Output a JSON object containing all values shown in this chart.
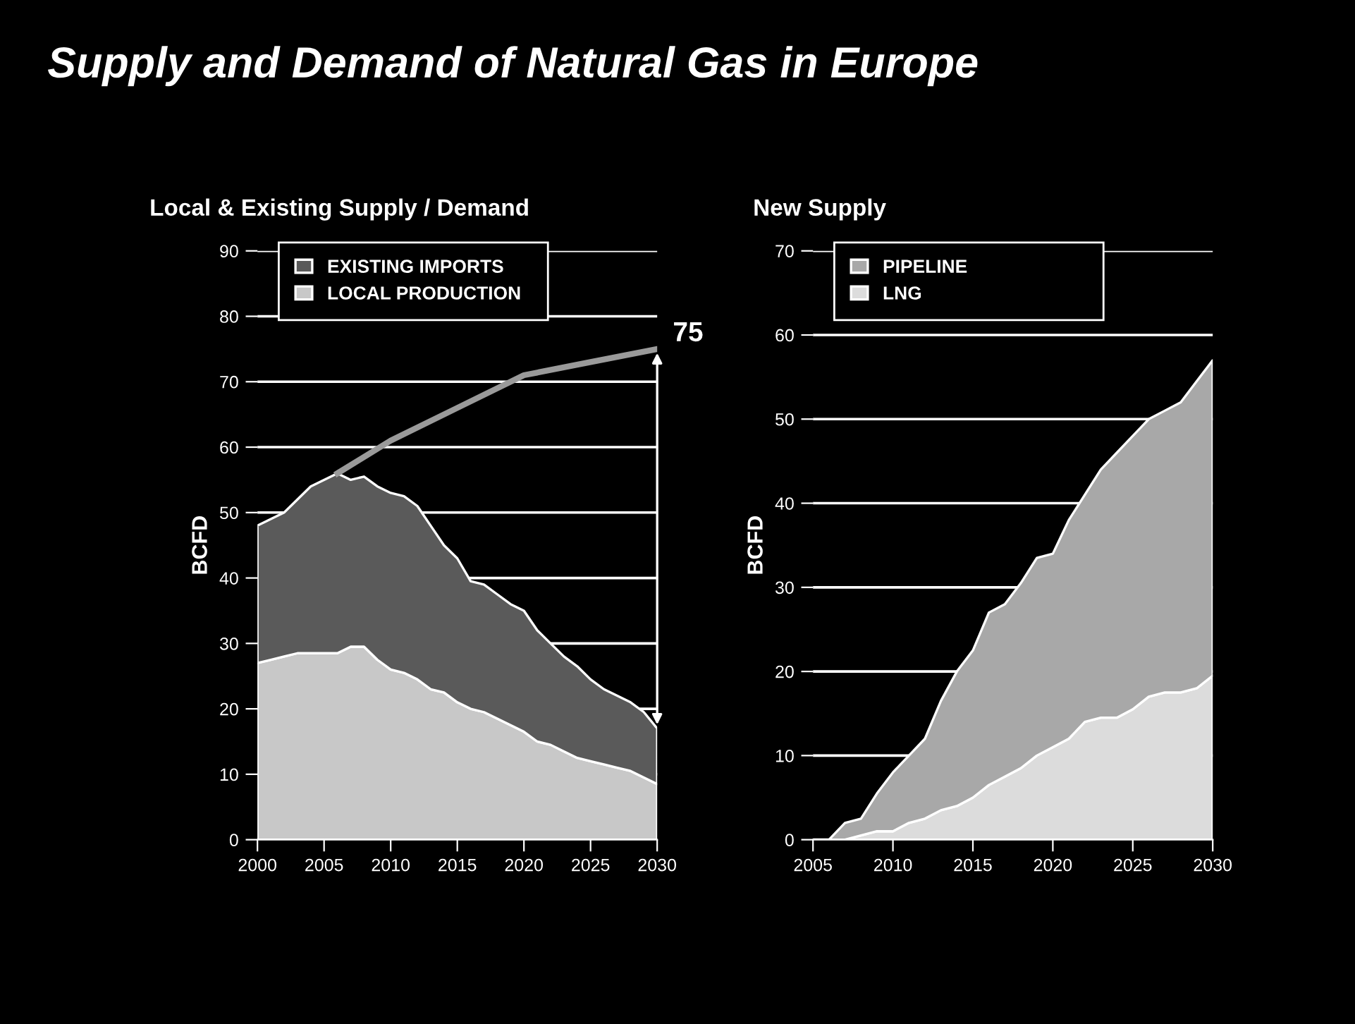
{
  "chart_data": [
    {
      "type": "area",
      "stacked": true,
      "title": "Supply and Demand of Natural Gas in Europe",
      "subtitle": "Local & Existing Supply / Demand",
      "ylabel": "BCFD",
      "x": [
        2000,
        2001,
        2002,
        2003,
        2004,
        2005,
        2006,
        2007,
        2008,
        2009,
        2010,
        2011,
        2012,
        2013,
        2014,
        2015,
        2016,
        2017,
        2018,
        2019,
        2020,
        2021,
        2022,
        2023,
        2024,
        2025,
        2026,
        2027,
        2028,
        2029,
        2030
      ],
      "series": [
        {
          "name": "LOCAL PRODUCTION",
          "color": "#c8c8c8",
          "values": [
            27,
            27.5,
            28,
            28.5,
            28.5,
            28.5,
            28.5,
            29.5,
            29.5,
            27.5,
            26,
            25.5,
            24.5,
            23,
            22.5,
            21,
            20,
            19.5,
            18.5,
            17.5,
            16.5,
            15,
            14.5,
            13.5,
            12.5,
            12,
            11.5,
            11,
            10.5,
            9.5,
            8.5
          ]
        },
        {
          "name": "EXISTING IMPORTS",
          "color": "#5a5a5a",
          "values": [
            21,
            21.5,
            22,
            23.5,
            25.5,
            26.5,
            27.5,
            25.5,
            26,
            26.5,
            27,
            27,
            26.5,
            25,
            22.5,
            22,
            19.5,
            19.5,
            19,
            18.5,
            18.5,
            17,
            15.5,
            14.5,
            14,
            12.5,
            11.5,
            11,
            10.5,
            10,
            8.5
          ]
        },
        {
          "type": "line",
          "color": "#9a9a9a",
          "x": [
            2006,
            2010,
            2015,
            2020,
            2025,
            2030
          ],
          "values": [
            56,
            61,
            66,
            71,
            73,
            75
          ]
        }
      ],
      "annotations": [
        {
          "text": "75",
          "x": 2030,
          "y": 75
        }
      ],
      "xlim": [
        2000,
        2030
      ],
      "xticks": [
        2000,
        2005,
        2010,
        2015,
        2020,
        2025,
        2030
      ],
      "ylim": [
        0,
        90
      ],
      "yticks": [
        0,
        10,
        20,
        30,
        40,
        50,
        60,
        70,
        80,
        90
      ],
      "grid": "y",
      "legend": "top left"
    },
    {
      "type": "area",
      "stacked": true,
      "title": "New Supply",
      "ylabel": "BCFD",
      "x": [
        2006,
        2007,
        2008,
        2009,
        2010,
        2011,
        2012,
        2013,
        2014,
        2015,
        2016,
        2017,
        2018,
        2019,
        2020,
        2021,
        2022,
        2023,
        2024,
        2025,
        2026,
        2027,
        2028,
        2029,
        2030
      ],
      "series": [
        {
          "name": "LNG",
          "color": "#dcdcdc",
          "values": [
            0,
            0,
            0.5,
            1,
            1,
            2,
            2.5,
            3.5,
            4,
            5,
            6.5,
            7.5,
            8.5,
            10,
            11,
            12,
            14,
            14.5,
            14.5,
            15.5,
            17,
            17.5,
            17.5,
            18,
            19.5
          ]
        },
        {
          "name": "PIPELINE",
          "color": "#a8a8a8",
          "values": [
            0,
            2,
            2,
            4.5,
            7,
            8,
            9.5,
            13,
            16,
            17.5,
            20.5,
            20.5,
            22,
            23.5,
            23,
            26,
            27,
            29.5,
            31.5,
            32.5,
            33,
            33.5,
            34.5,
            36.5,
            37.5
          ]
        }
      ],
      "xlim": [
        2005,
        2030
      ],
      "xticks": [
        2005,
        2010,
        2015,
        2020,
        2025,
        2030
      ],
      "ylim": [
        0,
        70
      ],
      "yticks": [
        0,
        10,
        20,
        30,
        40,
        50,
        60,
        70
      ],
      "grid": "y",
      "legend": "top left"
    }
  ]
}
